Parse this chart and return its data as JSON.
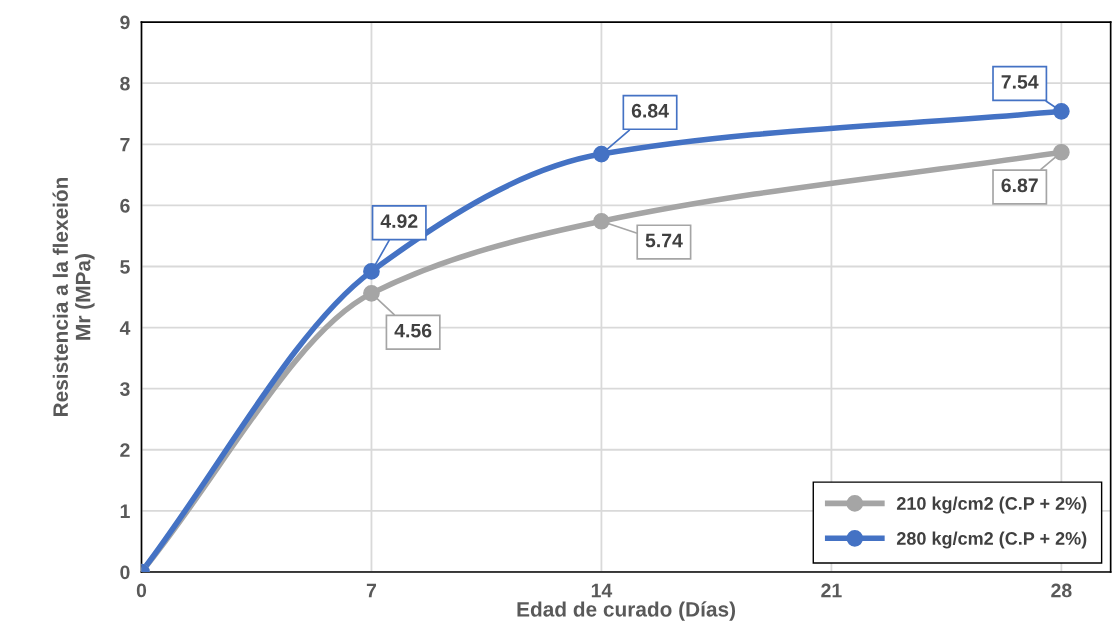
{
  "chart_data": {
    "type": "line",
    "xlabel": "Edad de curado (Días)",
    "ylabel": "Resistencia a la flexeión\nMr (MPa)",
    "x": [
      0,
      7,
      14,
      28
    ],
    "xlim": [
      0,
      29.5
    ],
    "xticks": [
      0,
      7,
      14,
      21,
      28
    ],
    "ylim": [
      0,
      9
    ],
    "yticks": [
      0,
      1,
      2,
      3,
      4,
      5,
      6,
      7,
      8,
      9
    ],
    "grid": true,
    "legend": "bottom right",
    "marker": "circle",
    "line_style": "solid",
    "series": [
      {
        "name": "210 kg/cm2 (C.P + 2%)",
        "color": "#a5a5a5",
        "values": [
          0,
          4.56,
          5.74,
          6.87
        ],
        "value_labels": [
          null,
          "4.56",
          "5.74",
          "6.87"
        ]
      },
      {
        "name": "280 kg/cm2 (C.P + 2%)",
        "color": "#4472c4",
        "values": [
          0,
          4.92,
          6.84,
          7.54
        ],
        "value_labels": [
          null,
          "4.92",
          "6.84",
          "7.54"
        ]
      }
    ]
  }
}
